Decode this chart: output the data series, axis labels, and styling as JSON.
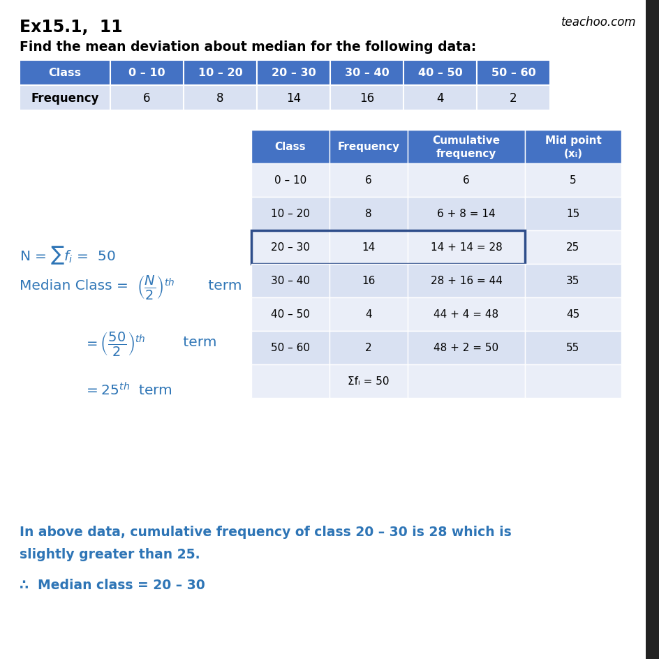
{
  "title": "Ex15.1,  11",
  "watermark": "teachoo.com",
  "question": "Find the mean deviation about median for the following data:",
  "top_table": {
    "headers": [
      "Class",
      "0 – 10",
      "10 – 20",
      "20 – 30",
      "30 – 40",
      "40 – 50",
      "50 – 60"
    ],
    "row": [
      "Frequency",
      "6",
      "8",
      "14",
      "16",
      "4",
      "2"
    ],
    "header_bg": "#4472C4",
    "header_fg": "#FFFFFF",
    "row_bg": "#D9E1F2",
    "row_fg": "#000000"
  },
  "main_table": {
    "headers": [
      "Class",
      "Frequency",
      "Cumulative\nfrequency",
      "Mid point\n(xᵢ)"
    ],
    "rows": [
      [
        "0 – 10",
        "6",
        "6",
        "5"
      ],
      [
        "10 – 20",
        "8",
        "6 + 8 = 14",
        "15"
      ],
      [
        "20 – 30",
        "14",
        "14 + 14 = 28",
        "25"
      ],
      [
        "30 – 40",
        "16",
        "28 + 16 = 44",
        "35"
      ],
      [
        "40 – 50",
        "4",
        "44 + 4 = 48",
        "45"
      ],
      [
        "50 – 60",
        "2",
        "48 + 2 = 50",
        "55"
      ],
      [
        "",
        "Σfᵢ = 50",
        "",
        ""
      ]
    ],
    "header_bg": "#4472C4",
    "header_fg": "#FFFFFF",
    "row_bg_light": "#EAEef8",
    "row_bg_dark": "#D9E1F2",
    "highlighted_row": 2,
    "highlight_border": "#2E4D8A"
  },
  "left_text_color": "#2E75B6",
  "bottom_text_color": "#2E75B6",
  "bg_color": "#FFFFFF",
  "right_bar_color": "#222222"
}
